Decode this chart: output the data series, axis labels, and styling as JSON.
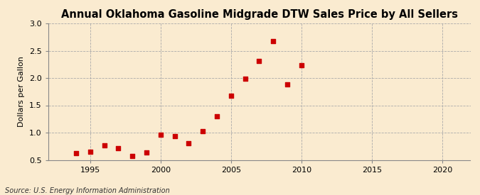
{
  "title": "Annual Oklahoma Gasoline Midgrade DTW Sales Price by All Sellers",
  "ylabel": "Dollars per Gallon",
  "source": "Source: U.S. Energy Information Administration",
  "background_color": "#faebd0",
  "plot_bg_color": "#faebd0",
  "x_data": [
    1994,
    1995,
    1996,
    1997,
    1998,
    1999,
    2000,
    2001,
    2002,
    2003,
    2004,
    2005,
    2006,
    2007,
    2008,
    2009,
    2010
  ],
  "y_data": [
    0.62,
    0.65,
    0.76,
    0.72,
    0.57,
    0.64,
    0.96,
    0.93,
    0.8,
    1.02,
    1.3,
    1.68,
    1.99,
    2.31,
    2.67,
    1.88,
    2.24
  ],
  "marker_color": "#cc0000",
  "marker_size": 18,
  "xlim": [
    1992,
    2022
  ],
  "ylim": [
    0.5,
    3.0
  ],
  "xticks": [
    1995,
    2000,
    2005,
    2010,
    2015,
    2020
  ],
  "yticks": [
    0.5,
    1.0,
    1.5,
    2.0,
    2.5,
    3.0
  ],
  "grid_color": "#aaaaaa",
  "vgrid_positions": [
    1995,
    2000,
    2005,
    2010,
    2015,
    2020
  ],
  "title_fontsize": 10.5,
  "ylabel_fontsize": 8,
  "tick_fontsize": 8,
  "source_fontsize": 7
}
